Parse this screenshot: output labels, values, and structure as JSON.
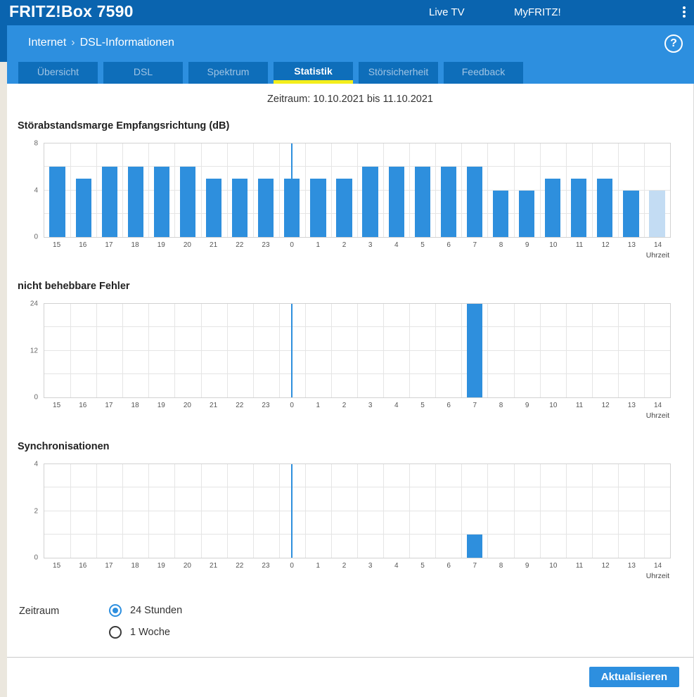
{
  "header": {
    "logo": "FRITZ!Box 7590",
    "nav": [
      {
        "label": "Live TV"
      },
      {
        "label": "MyFRITZ!"
      }
    ]
  },
  "breadcrumb": {
    "section": "Internet",
    "separator": "›",
    "page": "DSL-Informationen"
  },
  "help_icon": {
    "glyph": "?"
  },
  "tabs": [
    {
      "label": "Übersicht",
      "active": false
    },
    {
      "label": "DSL",
      "active": false
    },
    {
      "label": "Spektrum",
      "active": false
    },
    {
      "label": "Statistik",
      "active": true
    },
    {
      "label": "Störsicherheit",
      "active": false
    },
    {
      "label": "Feedback",
      "active": false
    }
  ],
  "period_line": "Zeitraum: 10.10.2021 bis 11.10.2021",
  "chart_data": [
    {
      "type": "bar",
      "title": "Störabstandsmarge Empfangsrichtung (dB)",
      "categories": [
        "15",
        "16",
        "17",
        "18",
        "19",
        "20",
        "21",
        "22",
        "23",
        "0",
        "1",
        "2",
        "3",
        "4",
        "5",
        "6",
        "7",
        "8",
        "9",
        "10",
        "11",
        "12",
        "13",
        "14"
      ],
      "values": [
        6,
        5,
        6,
        6,
        6,
        6,
        5,
        5,
        5,
        5,
        5,
        5,
        6,
        6,
        6,
        6,
        6,
        4,
        4,
        5,
        5,
        5,
        4,
        4
      ],
      "ylim": [
        0,
        8
      ],
      "yticks": [
        0,
        4,
        8
      ],
      "grid_step_y": 2,
      "xlabel": "Uhrzeit",
      "midnight_index": 9,
      "faded_indices": [
        23
      ],
      "bar_color": "#2e8fdd",
      "faded_bar_color": "#c3dcf3",
      "legend": "none",
      "grid": true
    },
    {
      "type": "bar",
      "title": "nicht behebbare Fehler",
      "categories": [
        "15",
        "16",
        "17",
        "18",
        "19",
        "20",
        "21",
        "22",
        "23",
        "0",
        "1",
        "2",
        "3",
        "4",
        "5",
        "6",
        "7",
        "8",
        "9",
        "10",
        "11",
        "12",
        "13",
        "14"
      ],
      "values": [
        0,
        0,
        0,
        0,
        0,
        0,
        0,
        0,
        0,
        0,
        0,
        0,
        0,
        0,
        0,
        0,
        24,
        0,
        0,
        0,
        0,
        0,
        0,
        0
      ],
      "ylim": [
        0,
        24
      ],
      "yticks": [
        0,
        12,
        24
      ],
      "grid_step_y": 6,
      "xlabel": "Uhrzeit",
      "midnight_index": 9,
      "faded_indices": [],
      "bar_color": "#2e8fdd",
      "faded_bar_color": "#c3dcf3",
      "legend": "none",
      "grid": true
    },
    {
      "type": "bar",
      "title": "Synchronisationen",
      "categories": [
        "15",
        "16",
        "17",
        "18",
        "19",
        "20",
        "21",
        "22",
        "23",
        "0",
        "1",
        "2",
        "3",
        "4",
        "5",
        "6",
        "7",
        "8",
        "9",
        "10",
        "11",
        "12",
        "13",
        "14"
      ],
      "values": [
        0,
        0,
        0,
        0,
        0,
        0,
        0,
        0,
        0,
        0,
        0,
        0,
        0,
        0,
        0,
        0,
        1,
        0,
        0,
        0,
        0,
        0,
        0,
        0
      ],
      "ylim": [
        0,
        4
      ],
      "yticks": [
        0,
        2,
        4
      ],
      "grid_step_y": 1,
      "xlabel": "Uhrzeit",
      "midnight_index": 9,
      "faded_indices": [],
      "bar_color": "#2e8fdd",
      "faded_bar_color": "#c3dcf3",
      "legend": "none",
      "grid": true
    }
  ],
  "form": {
    "label": "Zeitraum",
    "options": [
      {
        "label": "24 Stunden",
        "selected": true
      },
      {
        "label": "1 Woche",
        "selected": false
      }
    ]
  },
  "actions": {
    "refresh_label": "Aktualisieren"
  },
  "colors": {
    "header_bg": "#0a64af",
    "subheader_bg": "#2d8fdf",
    "tab_bg": "#0e6eba",
    "active_tab_underline": "#f3ee1b",
    "bar": "#2e8fdd",
    "bar_faded": "#c3dcf3",
    "button": "#2d8fdf",
    "page_bg": "#ebe7de"
  }
}
